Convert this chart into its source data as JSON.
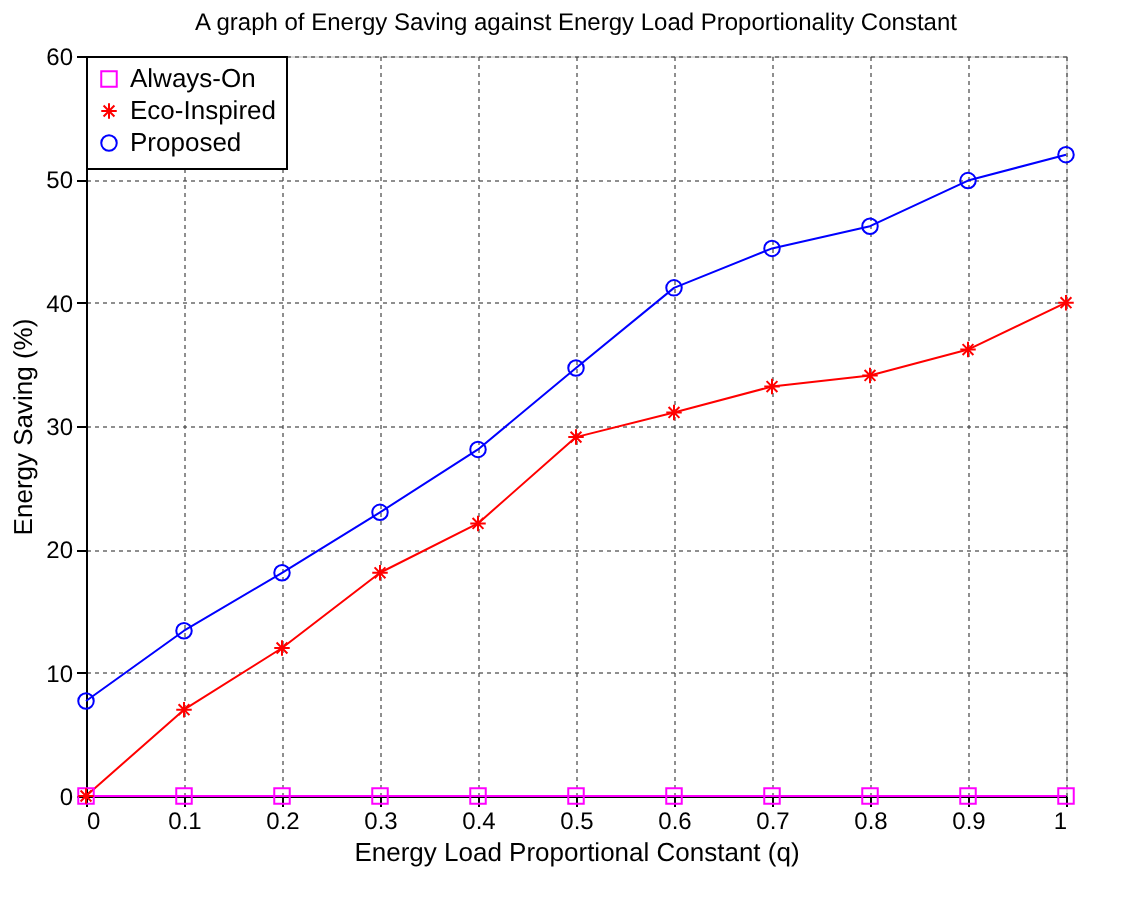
{
  "chart_data": {
    "type": "line",
    "title": "A graph of Energy Saving against Energy Load Proportionality Constant",
    "xlabel": "Energy Load Proportional Constant (q)",
    "ylabel": "Energy Saving (%)",
    "x": [
      0,
      0.1,
      0.2,
      0.3,
      0.4,
      0.5,
      0.6,
      0.7,
      0.8,
      0.9,
      1
    ],
    "series": [
      {
        "name": "Always-On",
        "color": "#ff00ff",
        "marker": "square",
        "values": [
          0,
          0,
          0,
          0,
          0,
          0,
          0,
          0,
          0,
          0,
          0
        ]
      },
      {
        "name": "Eco-Inspired",
        "color": "#ff0000",
        "marker": "cross",
        "values": [
          0,
          7,
          12,
          18.1,
          22.1,
          29.1,
          31.1,
          33.2,
          34.1,
          36.2,
          40
        ]
      },
      {
        "name": "Proposed",
        "color": "#0000ff",
        "marker": "circle",
        "values": [
          7.7,
          13.4,
          18.1,
          23,
          28.1,
          34.7,
          41.2,
          44.4,
          46.2,
          49.9,
          52
        ]
      }
    ],
    "xlim": [
      0,
      1
    ],
    "xticks": [
      0,
      0.1,
      0.2,
      0.3,
      0.4,
      0.5,
      0.6,
      0.7,
      0.8,
      0.9,
      1
    ],
    "ylim": [
      0,
      60
    ],
    "yticks": [
      0,
      10,
      20,
      30,
      40,
      50,
      60
    ],
    "grid": true,
    "legend": "top left",
    "line_style": "solid"
  }
}
